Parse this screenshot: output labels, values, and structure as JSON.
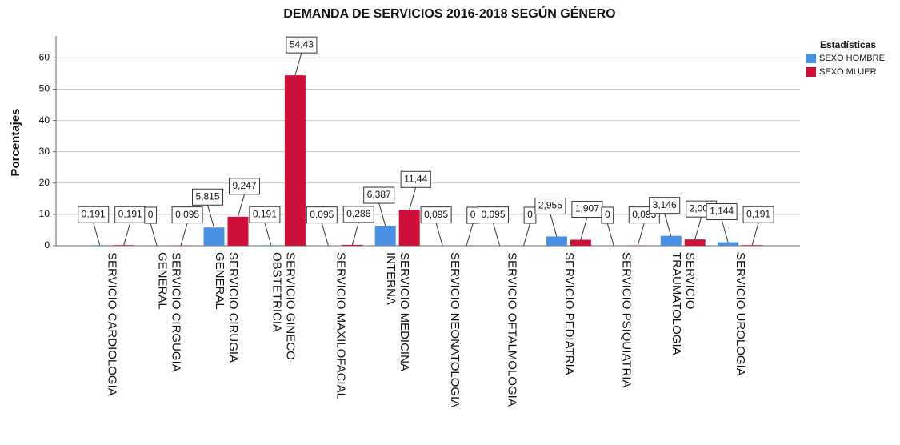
{
  "chart_data": {
    "type": "bar",
    "title": "DEMANDA DE SERVICIOS 2016-2018 SEGÚN GÉNERO",
    "y_label": "Porcentajes",
    "legend_title": "Estadísticas",
    "categories": [
      "SERVICIO CARDIOLOGIA",
      "SERVICIO CIRGUGIA\nGENERAL",
      "SERVICIO CIRUGIA\nGENERAL",
      "SERVICIO GINECO-\nOBSTETRICIA",
      "SERVICIO MAXILOFACIAL",
      "SERVICIO MEDICINA\nINTERNA",
      "SERVICIO NEONATOLOGIA",
      "SERVICIO OFTALMOLOGIA",
      "SERVICIO PEDIATRIA",
      "SERVICIO PSIQUIATRIA",
      "SERVICIO\nTRAUMATOLOGIA",
      "SERVICIO UROLOGIA"
    ],
    "series": [
      {
        "name": "SEXO HOMBRE",
        "color": "#4a90e2",
        "values": [
          0.191,
          0,
          5.815,
          0.191,
          0.095,
          6.387,
          0.095,
          0.095,
          2.955,
          0,
          3.146,
          1.144
        ],
        "value_labels": [
          "0,191",
          "0",
          "5,815",
          "0,191",
          "0,095",
          "6,387",
          "0,095",
          "0,095",
          "2,955",
          "0",
          "3,146",
          "1,144"
        ]
      },
      {
        "name": "SEXO MUJER",
        "color": "#d0103a",
        "values": [
          0.191,
          0.095,
          9.247,
          54.43,
          0.286,
          11.44,
          0,
          0,
          1.907,
          0.095,
          2.002,
          0.191
        ],
        "value_labels": [
          "0,191",
          "0,095",
          "9,247",
          "54,43",
          "0,286",
          "11,44",
          "0",
          "0",
          "1,907",
          "0,095",
          "2,002",
          "0,191"
        ]
      }
    ],
    "ylim": [
      0,
      67
    ],
    "yticks": [
      0,
      10,
      20,
      30,
      40,
      50,
      60
    ],
    "grid": true,
    "legend": "right"
  }
}
